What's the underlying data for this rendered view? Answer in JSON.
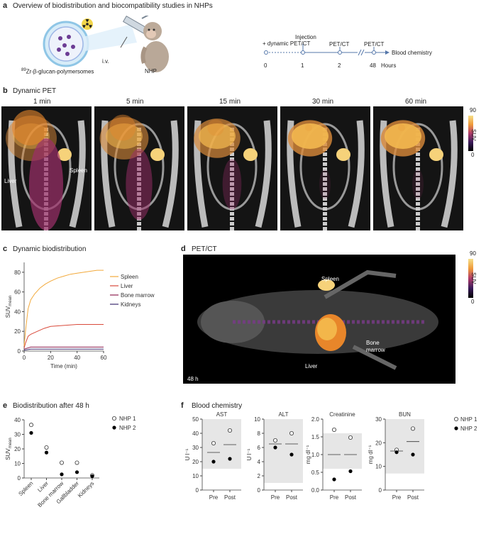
{
  "panel_a": {
    "label": "a",
    "title": "Overview of biodistribution and biocompatibility studies in NHPs",
    "particle_sup": "89",
    "particle_label": "Zr-β-glucan-polymersomes",
    "route_label": "i.v.",
    "animal_label": "NHP",
    "timeline": {
      "label_injection": "Injection",
      "label_injection2": "+ dynamic PET/CT",
      "label_petct1": "PET/CT",
      "label_petct2": "PET/CT",
      "label_blood": "Blood chemistry",
      "ticks": [
        "0",
        "1",
        "2",
        "48"
      ],
      "unit": "Hours"
    }
  },
  "panel_b": {
    "label": "b",
    "title": "Dynamic PET",
    "times": [
      "1 min",
      "5 min",
      "15 min",
      "30 min",
      "60 min"
    ],
    "liver_label": "Liver",
    "spleen_label": "Spleen",
    "colorbar": {
      "max": "90",
      "min": "0",
      "unit": "SUV"
    }
  },
  "panel_c": {
    "label": "c",
    "title": "Dynamic biodistribution",
    "ylabel": "SUV",
    "ylabel_sub": "mean",
    "xlabel": "Time (min)",
    "legend": [
      "Spleen",
      "Liver",
      "Bone marrow",
      "Kidneys"
    ]
  },
  "panel_d": {
    "label": "d",
    "title": "PET/CT",
    "spleen_label": "Spleen",
    "liver_label": "Liver",
    "bone_label1": "Bone",
    "bone_label2": "marrow",
    "time_label": "48 h",
    "colorbar": {
      "max": "90",
      "min": "0",
      "unit": "SUV"
    }
  },
  "panel_e": {
    "label": "e",
    "title": "Biodistribution after 48 h",
    "ylabel": "SUV",
    "ylabel_sub": "mean",
    "legend": [
      "NHP 1",
      "NHP 2"
    ]
  },
  "panel_f": {
    "label": "f",
    "title": "Blood chemistry",
    "legend": [
      "NHP 1",
      "NHP 2"
    ]
  },
  "chart_data": [
    {
      "type": "line",
      "title": "Dynamic biodistribution",
      "xlabel": "Time (min)",
      "ylabel": "SUVmean",
      "xlim": [
        0,
        60
      ],
      "ylim": [
        0,
        90
      ],
      "xticks": [
        0,
        20,
        40,
        60
      ],
      "yticks": [
        0,
        20,
        40,
        60,
        80
      ],
      "series": [
        {
          "name": "Spleen",
          "color": "#f2a93b",
          "x": [
            0,
            1,
            3,
            5,
            8,
            12,
            16,
            20,
            25,
            30,
            35,
            40,
            45,
            50,
            55,
            60
          ],
          "y": [
            5,
            20,
            43,
            52,
            58,
            64,
            68,
            71,
            74,
            76,
            78,
            79,
            80,
            81,
            82,
            82
          ]
        },
        {
          "name": "Liver",
          "color": "#d94a3b",
          "x": [
            0,
            1,
            3,
            5,
            10,
            15,
            20,
            30,
            40,
            50,
            60
          ],
          "y": [
            3,
            8,
            15,
            17,
            20,
            23,
            25,
            26,
            27,
            27,
            27
          ]
        },
        {
          "name": "Bone marrow",
          "color": "#8e1f4f",
          "x": [
            0,
            5,
            20,
            40,
            60
          ],
          "y": [
            2,
            4,
            4,
            4,
            4
          ]
        },
        {
          "name": "Kidneys",
          "color": "#3b2a6e",
          "x": [
            0,
            5,
            20,
            40,
            60
          ],
          "y": [
            1,
            2,
            2,
            2,
            2
          ]
        }
      ]
    },
    {
      "type": "scatter",
      "title": "Biodistribution after 48 h",
      "ylabel": "SUVmean",
      "ylim": [
        0,
        40
      ],
      "yticks": [
        0,
        10,
        20,
        30,
        40
      ],
      "categories": [
        "Spleen",
        "Liver",
        "Bone marrow",
        "Gallbladder",
        "Kidneys"
      ],
      "series": [
        {
          "name": "NHP 1",
          "values": [
            36.5,
            21,
            10.5,
            10.5,
            1.8
          ]
        },
        {
          "name": "NHP 2",
          "values": [
            31,
            17.5,
            2.5,
            4,
            1.2
          ]
        }
      ]
    },
    {
      "type": "scatter",
      "title": "AST",
      "ylabel": "U l⁻¹",
      "ylim": [
        0,
        50
      ],
      "yticks": [
        0,
        10,
        20,
        30,
        40,
        50
      ],
      "categories": [
        "Pre",
        "Post"
      ],
      "reference_range": [
        15,
        50
      ],
      "means": [
        26.5,
        32
      ],
      "series": [
        {
          "name": "NHP 1",
          "values": [
            33,
            42
          ]
        },
        {
          "name": "NHP 2",
          "values": [
            20,
            22
          ]
        }
      ]
    },
    {
      "type": "scatter",
      "title": "ALT",
      "ylabel": "U l⁻¹",
      "ylim": [
        0,
        10
      ],
      "yticks": [
        0,
        2,
        4,
        6,
        8,
        10
      ],
      "categories": [
        "Pre",
        "Post"
      ],
      "reference_range": [
        1,
        10
      ],
      "means": [
        6.5,
        6.5
      ],
      "series": [
        {
          "name": "NHP 1",
          "values": [
            7,
            8
          ]
        },
        {
          "name": "NHP 2",
          "values": [
            6,
            5
          ]
        }
      ]
    },
    {
      "type": "scatter",
      "title": "Creatinine",
      "ylabel": "mg dl⁻¹",
      "ylim": [
        0,
        2.0
      ],
      "yticks": [
        0,
        0.5,
        1.0,
        1.5,
        2.0
      ],
      "categories": [
        "Pre",
        "Post"
      ],
      "reference_range": [
        0.6,
        1.6
      ],
      "means": [
        1.0,
        1.0
      ],
      "series": [
        {
          "name": "NHP 1",
          "values": [
            1.7,
            1.48
          ]
        },
        {
          "name": "NHP 2",
          "values": [
            0.3,
            0.53
          ]
        }
      ]
    },
    {
      "type": "scatter",
      "title": "BUN",
      "ylabel": "mg dl⁻¹",
      "ylim": [
        0,
        30
      ],
      "yticks": [
        0,
        10,
        20,
        30
      ],
      "categories": [
        "Pre",
        "Post"
      ],
      "reference_range": [
        7,
        30
      ],
      "means": [
        16.5,
        20.5
      ],
      "series": [
        {
          "name": "NHP 1",
          "values": [
            17,
            26
          ]
        },
        {
          "name": "NHP 2",
          "values": [
            16,
            15
          ]
        }
      ]
    }
  ]
}
